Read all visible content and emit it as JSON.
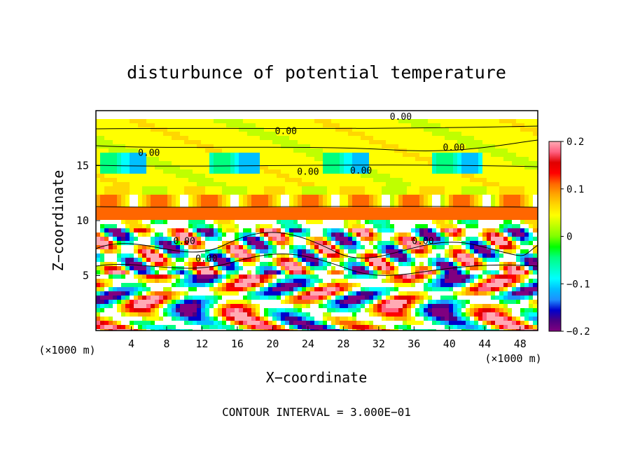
{
  "chart_data": {
    "type": "heatmap",
    "title": "disturbunce of potential temperature",
    "xlabel": "X−coordinate",
    "ylabel": "Z−coordinate",
    "x_unit_left": "(×1000 m)",
    "x_unit_right": "(×1000 m)",
    "xlim": [
      0,
      50
    ],
    "ylim": [
      0,
      20
    ],
    "x_ticks": [
      4,
      8,
      12,
      16,
      20,
      24,
      28,
      32,
      36,
      40,
      44,
      48
    ],
    "y_ticks": [
      5,
      10,
      15
    ],
    "colorbar": {
      "min": -0.2,
      "max": 0.2,
      "tick_values": [
        0.2,
        0.1,
        0,
        -0.1,
        -0.2
      ],
      "tick_labels": [
        "0.2",
        "0.1",
        "0",
        "−0.1",
        "−0.2"
      ],
      "colors": [
        "#800080",
        "#4b0082",
        "#0000cd",
        "#1e90ff",
        "#00bfff",
        "#00ffff",
        "#00ffbf",
        "#00ff7f",
        "#00ff00",
        "#7fff00",
        "#bfff00",
        "#ffff00",
        "#ffd700",
        "#ffa500",
        "#ff6600",
        "#ff0000",
        "#e00000",
        "#ff6080",
        "#ffaab4"
      ]
    },
    "contour_labels": [
      {
        "text": "0.00",
        "x": 21.5,
        "z": 18.2
      },
      {
        "text": "0.00",
        "x": 34.5,
        "z": 19.5
      },
      {
        "text": "0.00",
        "x": 6.0,
        "z": 16.2
      },
      {
        "text": "0.00",
        "x": 40.5,
        "z": 16.7
      },
      {
        "text": "0.00",
        "x": 24.0,
        "z": 14.5
      },
      {
        "text": "0.00",
        "x": 30.0,
        "z": 14.6
      },
      {
        "text": "0.00",
        "x": 10.0,
        "z": 8.2
      },
      {
        "text": "0.00",
        "x": 12.5,
        "z": 6.6
      },
      {
        "text": "0.00",
        "x": 37.0,
        "z": 8.2
      }
    ],
    "footnote": "CONTOUR INTERVAL = 3.000E−01"
  }
}
